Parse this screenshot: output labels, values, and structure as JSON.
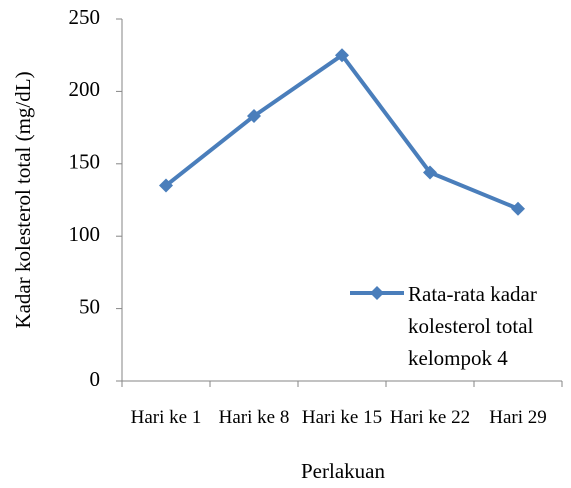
{
  "chart_data": {
    "type": "line",
    "categories": [
      "Hari ke 1",
      "Hari ke 8",
      "Hari ke 15",
      "Hari ke 22",
      "Hari 29"
    ],
    "series": [
      {
        "name": "Rata-rata kadar kolesterol total kelompok 4",
        "color": "#4a7ebb",
        "values": [
          135,
          183,
          225,
          144,
          119
        ]
      }
    ],
    "xlabel": "Perlakuan",
    "ylabel": "Kadar kolesterol total (mg/dL)",
    "ylim": [
      0,
      250
    ],
    "yticks": [
      0,
      50,
      100,
      150,
      200,
      250
    ],
    "grid": false,
    "legend": "right"
  }
}
